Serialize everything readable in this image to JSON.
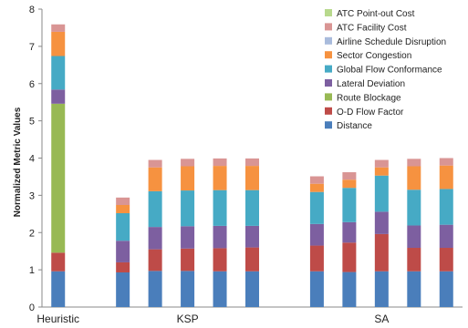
{
  "chart_data": {
    "type": "bar",
    "stacked": true,
    "ylabel": "Normalized Metric Values",
    "ylim": [
      0,
      8
    ],
    "yticks": [
      0,
      1,
      2,
      3,
      4,
      5,
      6,
      7,
      8
    ],
    "grid": false,
    "legend_position": "top-right",
    "legend_order": [
      "ATC Point-out Cost",
      "ATC Facility Cost",
      "Airline Schedule Disruption",
      "Sector Congestion",
      "Global Flow Conformance",
      "Lateral Deviation",
      "Route Blockage",
      "O-D Flow Factor",
      "Distance"
    ],
    "group_labels": [
      {
        "label": "Heuristic",
        "first_bar": 0,
        "last_bar": 0
      },
      {
        "label": "KSP",
        "first_bar": 2,
        "last_bar": 6
      },
      {
        "label": "SA",
        "first_bar": 8,
        "last_bar": 12
      }
    ],
    "bar_count": 13,
    "series": [
      {
        "name": "Distance",
        "color": "#4a7ebb",
        "values": [
          0.96,
          0,
          0.93,
          0.97,
          0.97,
          0.96,
          0.96,
          0,
          0.96,
          0.94,
          0.96,
          0.96,
          0.96
        ]
      },
      {
        "name": "O-D Flow Factor",
        "color": "#be4b48",
        "values": [
          0.5,
          0,
          0.27,
          0.58,
          0.6,
          0.62,
          0.64,
          0,
          0.69,
          0.79,
          1.0,
          0.63,
          0.63
        ]
      },
      {
        "name": "Route Blockage",
        "color": "#98b954",
        "values": [
          4.0,
          0,
          0,
          0,
          0,
          0,
          0,
          0,
          0,
          0,
          0,
          0,
          0
        ]
      },
      {
        "name": "Lateral Deviation",
        "color": "#7d5fa0",
        "values": [
          0.38,
          0,
          0.58,
          0.6,
          0.6,
          0.6,
          0.58,
          0,
          0.58,
          0.55,
          0.6,
          0.6,
          0.62
        ]
      },
      {
        "name": "Global Flow Conformance",
        "color": "#46aac5",
        "values": [
          0.9,
          0,
          0.74,
          0.96,
          0.96,
          0.96,
          0.96,
          0,
          0.86,
          0.92,
          0.97,
          0.96,
          0.96
        ]
      },
      {
        "name": "Sector Congestion",
        "color": "#f69240",
        "values": [
          0.65,
          0,
          0.22,
          0.64,
          0.65,
          0.65,
          0.65,
          0,
          0.22,
          0.22,
          0.22,
          0.63,
          0.63
        ]
      },
      {
        "name": "Airline Schedule Disruption",
        "color": "#a9bbdc",
        "values": [
          0,
          0,
          0,
          0,
          0,
          0,
          0,
          0,
          0,
          0,
          0,
          0,
          0
        ]
      },
      {
        "name": "ATC Facility Cost",
        "color": "#d99594",
        "values": [
          0.2,
          0,
          0.2,
          0.2,
          0.2,
          0.2,
          0.2,
          0,
          0.2,
          0.2,
          0.2,
          0.2,
          0.2
        ]
      },
      {
        "name": "ATC Point-out Cost",
        "color": "#b8d98d",
        "values": [
          0,
          0,
          0,
          0,
          0,
          0,
          0,
          0,
          0,
          0,
          0,
          0,
          0
        ]
      }
    ]
  }
}
